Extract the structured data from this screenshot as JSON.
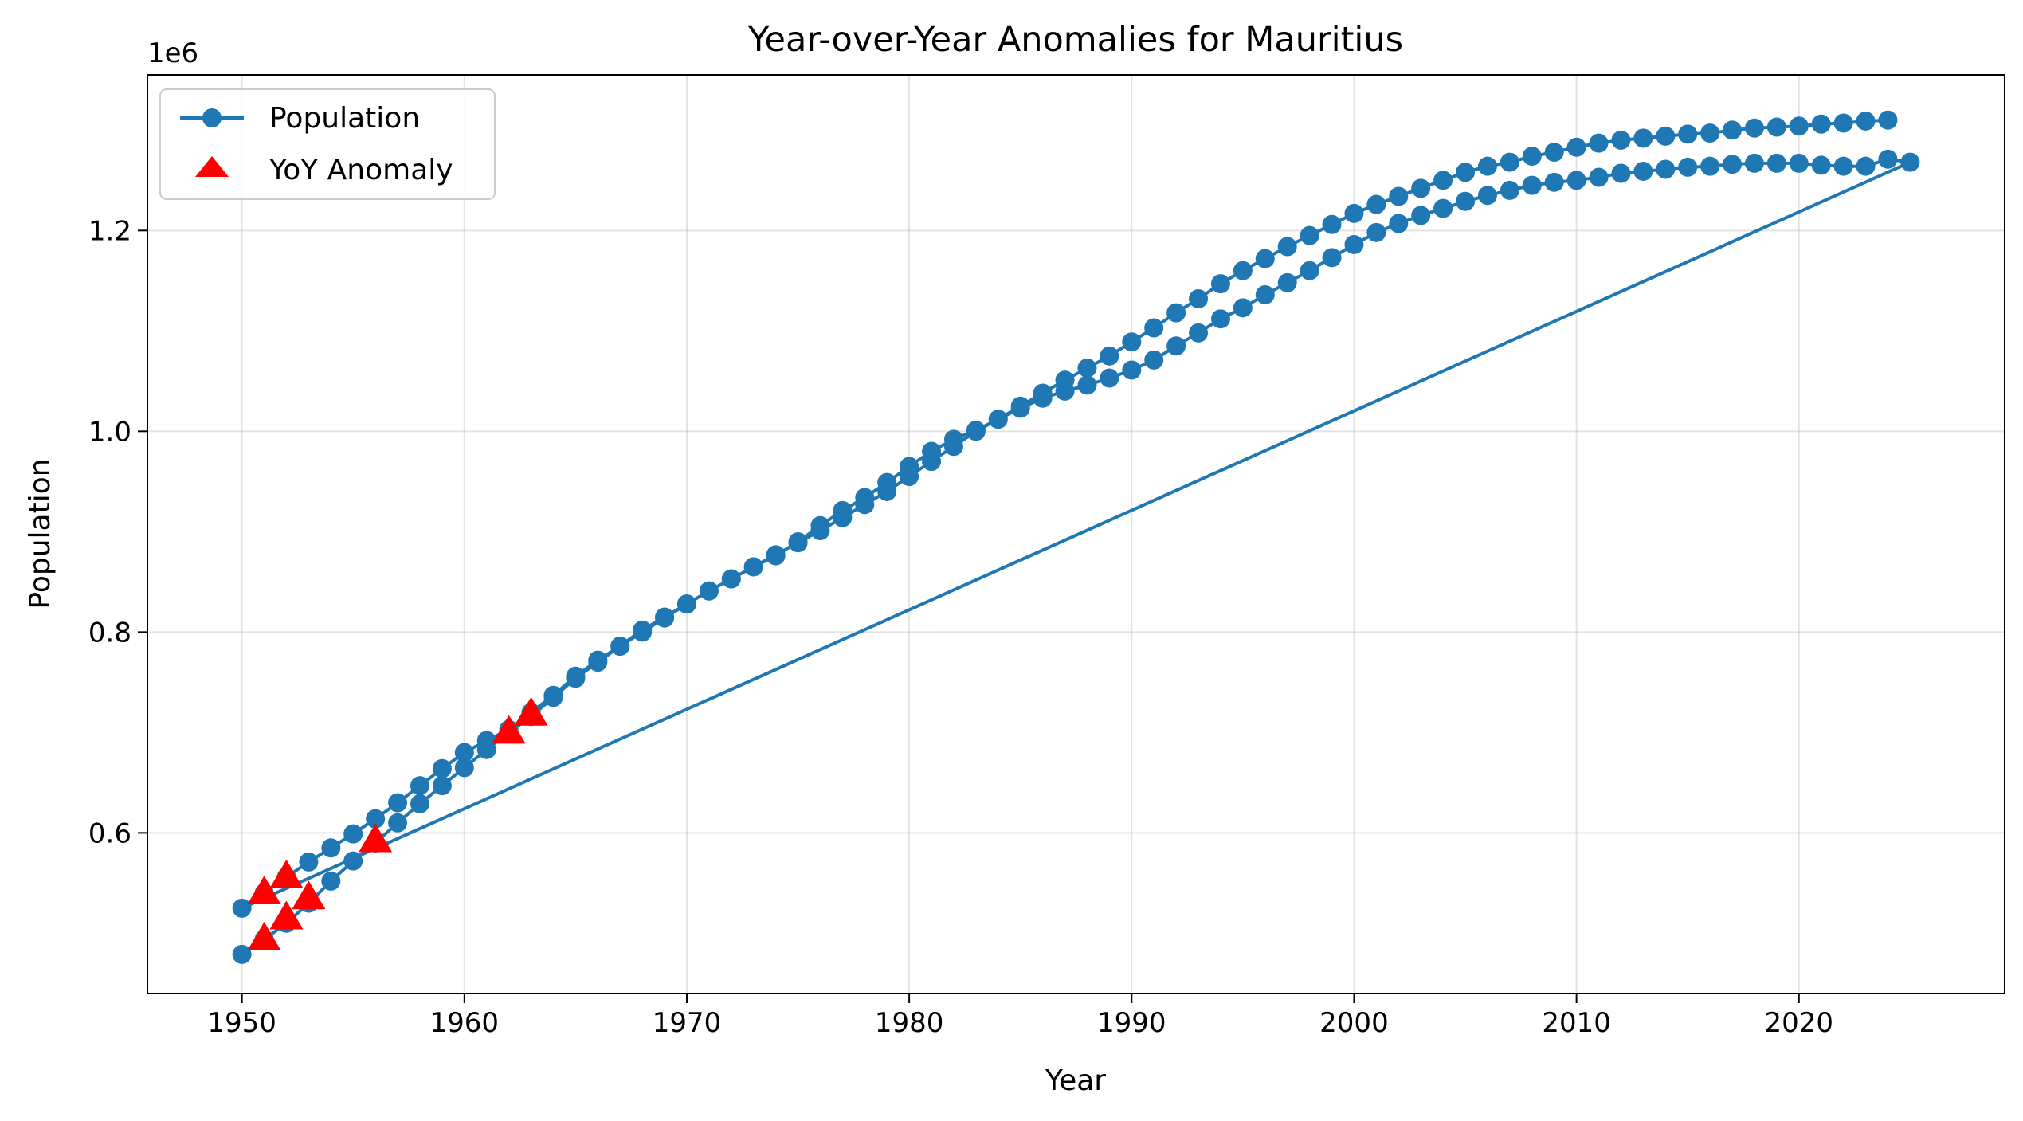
{
  "chart_data": {
    "type": "line",
    "title": "Year-over-Year Anomalies for Mauritius",
    "xlabel": "Year",
    "ylabel": "Population",
    "y_offset_label": "1e6",
    "xlim": [
      1945.75,
      2029.25
    ],
    "ylim": [
      0.44,
      1.355
    ],
    "x_ticks": [
      1950,
      1960,
      1970,
      1980,
      1990,
      2000,
      2010,
      2020
    ],
    "y_ticks": [
      0.6,
      0.8,
      1.0,
      1.2
    ],
    "y_tick_labels": [
      "0.6",
      "0.8",
      "1.0",
      "1.2"
    ],
    "grid": true,
    "legend_position": "top-left",
    "colors": {
      "population": "#1f77b4",
      "anomaly": "#ff0000"
    },
    "series": [
      {
        "name": "Population",
        "marker": "circle",
        "x": [
          1950,
          1951,
          1952,
          1953,
          1954,
          1955,
          1956,
          1957,
          1958,
          1959,
          1960,
          1961,
          1962,
          1963,
          1964,
          1965,
          1966,
          1967,
          1968,
          1969,
          1970,
          1971,
          1972,
          1973,
          1974,
          1975,
          1976,
          1977,
          1978,
          1979,
          1980,
          1981,
          1982,
          1983,
          1984,
          1985,
          1986,
          1987,
          1988,
          1989,
          1990,
          1991,
          1992,
          1993,
          1994,
          1995,
          1996,
          1997,
          1998,
          1999,
          2000,
          2001,
          2002,
          2003,
          2004,
          2005,
          2006,
          2007,
          2008,
          2009,
          2010,
          2011,
          2012,
          2013,
          2014,
          2015,
          2016,
          2017,
          2018,
          2019,
          2020,
          2021,
          2022,
          2023,
          2024,
          2025,
          1950,
          1951,
          1952,
          1953,
          1954,
          1955,
          1956,
          1957,
          1958,
          1959,
          1960,
          1961,
          1962,
          1963,
          1964,
          1965,
          1966,
          1967,
          1968,
          1969,
          1970,
          1971,
          1972,
          1973,
          1974,
          1975,
          1976,
          1977,
          1978,
          1979,
          1980,
          1981,
          1982,
          1983,
          1984,
          1985,
          1986,
          1987,
          1988,
          1989,
          1990,
          1991,
          1992,
          1993,
          1994,
          1995,
          1996,
          1997,
          1998,
          1999,
          2000,
          2001,
          2002,
          2003,
          2004,
          2005,
          2006,
          2007,
          2008,
          2009,
          2010,
          2011,
          2012,
          2013,
          2014,
          2015,
          2016,
          2017,
          2018,
          2019,
          2020,
          2021,
          2022,
          2023,
          2024
        ],
        "y": [
          0.479,
          0.494,
          0.51,
          0.53,
          0.552,
          0.572,
          0.59,
          0.61,
          0.629,
          0.647,
          0.665,
          0.683,
          0.7,
          0.716,
          0.735,
          0.754,
          0.77,
          0.786,
          0.8,
          0.814,
          0.828,
          0.841,
          0.853,
          0.865,
          0.877,
          0.889,
          0.901,
          0.914,
          0.927,
          0.94,
          0.955,
          0.97,
          0.985,
          1.0,
          1.012,
          1.023,
          1.033,
          1.04,
          1.046,
          1.053,
          1.061,
          1.071,
          1.085,
          1.098,
          1.112,
          1.123,
          1.136,
          1.148,
          1.16,
          1.173,
          1.186,
          1.198,
          1.207,
          1.215,
          1.222,
          1.229,
          1.235,
          1.24,
          1.245,
          1.248,
          1.25,
          1.253,
          1.257,
          1.259,
          1.261,
          1.263,
          1.264,
          1.266,
          1.267,
          1.267,
          1.267,
          1.265,
          1.264,
          1.264,
          1.271,
          1.268,
          0.525,
          0.54,
          0.556,
          0.571,
          0.585,
          0.599,
          0.614,
          0.63,
          0.647,
          0.664,
          0.68,
          0.692,
          0.703,
          0.72,
          0.737,
          0.756,
          0.772,
          0.786,
          0.802,
          0.815,
          0.828,
          0.841,
          0.853,
          0.865,
          0.876,
          0.89,
          0.906,
          0.921,
          0.934,
          0.949,
          0.965,
          0.98,
          0.992,
          1.001,
          1.012,
          1.025,
          1.038,
          1.051,
          1.063,
          1.075,
          1.089,
          1.103,
          1.118,
          1.132,
          1.147,
          1.16,
          1.172,
          1.184,
          1.195,
          1.206,
          1.217,
          1.226,
          1.234,
          1.242,
          1.25,
          1.258,
          1.264,
          1.268,
          1.274,
          1.278,
          1.283,
          1.287,
          1.29,
          1.292,
          1.294,
          1.296,
          1.297,
          1.3,
          1.302,
          1.303,
          1.304,
          1.306,
          1.307,
          1.309,
          1.31
        ]
      },
      {
        "name": "YoY Anomaly",
        "marker": "triangle",
        "x": [
          1951,
          1951,
          1952,
          1952,
          1953,
          1956,
          1962,
          1963
        ],
        "y": [
          0.494,
          0.54,
          0.515,
          0.556,
          0.535,
          0.592,
          0.7,
          0.718
        ]
      }
    ]
  }
}
